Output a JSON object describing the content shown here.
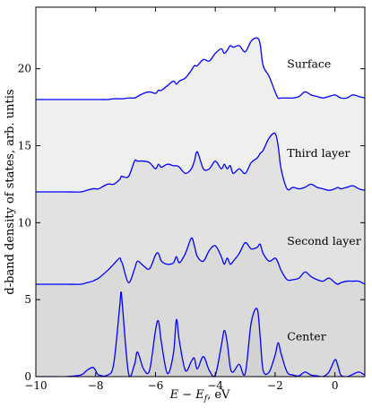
{
  "chart_data": {
    "type": "line",
    "title": "",
    "xlabel": "E − E_f, eV",
    "ylabel": "d-band density of states, arb. untis",
    "xlim": [
      -10,
      1
    ],
    "ylim": [
      0,
      24
    ],
    "xticks": [
      -10,
      -8,
      -6,
      -4,
      -2,
      0
    ],
    "yticks": [
      0,
      5,
      10,
      15,
      20
    ],
    "grid": false,
    "line_color": "#0000ff",
    "fill_colors": [
      "#efefef",
      "#e2e2e2",
      "#dadada",
      "#d2d2d2"
    ],
    "x": [
      -10.0,
      -9.5,
      -9.0,
      -8.5,
      -8.3,
      -8.1,
      -8.0,
      -7.9,
      -7.6,
      -7.4,
      -7.2,
      -7.15,
      -7.1,
      -6.9,
      -6.7,
      -6.6,
      -6.4,
      -6.2,
      -6.0,
      -5.9,
      -5.8,
      -5.6,
      -5.4,
      -5.3,
      -5.2,
      -5.0,
      -4.8,
      -4.7,
      -4.6,
      -4.4,
      -4.2,
      -4.0,
      -3.8,
      -3.7,
      -3.6,
      -3.5,
      -3.4,
      -3.2,
      -3.0,
      -2.8,
      -2.6,
      -2.5,
      -2.4,
      -2.2,
      -2.0,
      -1.9,
      -1.8,
      -1.6,
      -1.4,
      -1.2,
      -1.0,
      -0.8,
      -0.6,
      -0.4,
      -0.2,
      0.0,
      0.1,
      0.2,
      0.4,
      0.6,
      0.8,
      1.0
    ],
    "series": [
      {
        "name": "Center",
        "label_x": -1.0,
        "label_y": 2.6,
        "baseline": 0,
        "values": [
          0.0,
          0.0,
          0.0,
          0.1,
          0.4,
          0.6,
          0.4,
          0.1,
          0.1,
          0.8,
          4.5,
          5.5,
          4.5,
          0.2,
          0.8,
          1.6,
          0.5,
          0.4,
          3.0,
          3.6,
          2.2,
          0.2,
          1.5,
          3.7,
          2.3,
          0.4,
          1.0,
          1.2,
          0.5,
          1.3,
          0.4,
          0.1,
          2.0,
          3.0,
          2.2,
          0.6,
          0.3,
          0.8,
          0.2,
          3.5,
          4.4,
          2.6,
          0.4,
          0.3,
          1.4,
          2.2,
          1.5,
          0.3,
          0.1,
          0.05,
          0.3,
          0.1,
          0.05,
          0.0,
          0.3,
          1.1,
          0.7,
          0.1,
          0.0,
          0.15,
          0.3,
          0.1
        ]
      },
      {
        "name": "Second layer",
        "label_x": -1.0,
        "label_y": 8.8,
        "baseline": 6,
        "values": [
          6.0,
          6.0,
          6.0,
          6.0,
          6.1,
          6.2,
          6.3,
          6.4,
          6.9,
          7.3,
          7.7,
          7.5,
          7.3,
          6.1,
          7.0,
          7.5,
          7.2,
          7.0,
          7.9,
          8.0,
          7.5,
          7.3,
          7.4,
          7.8,
          7.4,
          8.0,
          9.0,
          8.5,
          7.8,
          7.5,
          8.2,
          8.5,
          7.8,
          7.3,
          7.7,
          7.3,
          7.5,
          8.0,
          8.7,
          8.3,
          8.4,
          8.6,
          8.0,
          7.5,
          7.7,
          7.4,
          6.9,
          6.3,
          6.3,
          6.4,
          6.8,
          6.5,
          6.3,
          6.2,
          6.4,
          6.1,
          6.0,
          6.1,
          6.2,
          6.2,
          6.2,
          6.0
        ]
      },
      {
        "name": "Third layer",
        "label_x": -1.0,
        "label_y": 14.5,
        "baseline": 12,
        "values": [
          12.0,
          12.0,
          12.0,
          12.0,
          12.1,
          12.2,
          12.2,
          12.2,
          12.5,
          12.5,
          12.8,
          13.0,
          13.0,
          13.0,
          14.0,
          14.0,
          14.0,
          13.9,
          13.5,
          13.8,
          13.6,
          13.8,
          13.7,
          13.7,
          13.6,
          13.2,
          13.5,
          14.0,
          14.6,
          13.5,
          13.5,
          14.0,
          13.5,
          13.8,
          13.5,
          13.7,
          13.2,
          13.5,
          13.2,
          13.9,
          14.2,
          14.5,
          14.7,
          15.5,
          15.8,
          15.0,
          13.5,
          12.2,
          12.3,
          12.2,
          12.3,
          12.5,
          12.3,
          12.2,
          12.1,
          12.2,
          12.3,
          12.2,
          12.3,
          12.4,
          12.2,
          12.1
        ]
      },
      {
        "name": "Surface",
        "label_x": -1.0,
        "label_y": 20.3,
        "baseline": 18,
        "values": [
          18.0,
          18.0,
          18.0,
          18.0,
          18.0,
          18.0,
          18.0,
          18.0,
          18.0,
          18.05,
          18.05,
          18.05,
          18.05,
          18.1,
          18.1,
          18.2,
          18.4,
          18.5,
          18.4,
          18.6,
          18.6,
          18.9,
          19.2,
          19.0,
          19.2,
          19.4,
          19.9,
          20.2,
          20.2,
          20.6,
          20.5,
          21.0,
          21.3,
          21.0,
          21.2,
          21.5,
          21.4,
          21.5,
          21.1,
          21.8,
          22.0,
          21.6,
          20.2,
          19.5,
          18.5,
          18.1,
          18.1,
          18.1,
          18.1,
          18.2,
          18.5,
          18.3,
          18.2,
          18.1,
          18.2,
          18.3,
          18.2,
          18.1,
          18.1,
          18.3,
          18.2,
          18.1
        ]
      }
    ]
  }
}
